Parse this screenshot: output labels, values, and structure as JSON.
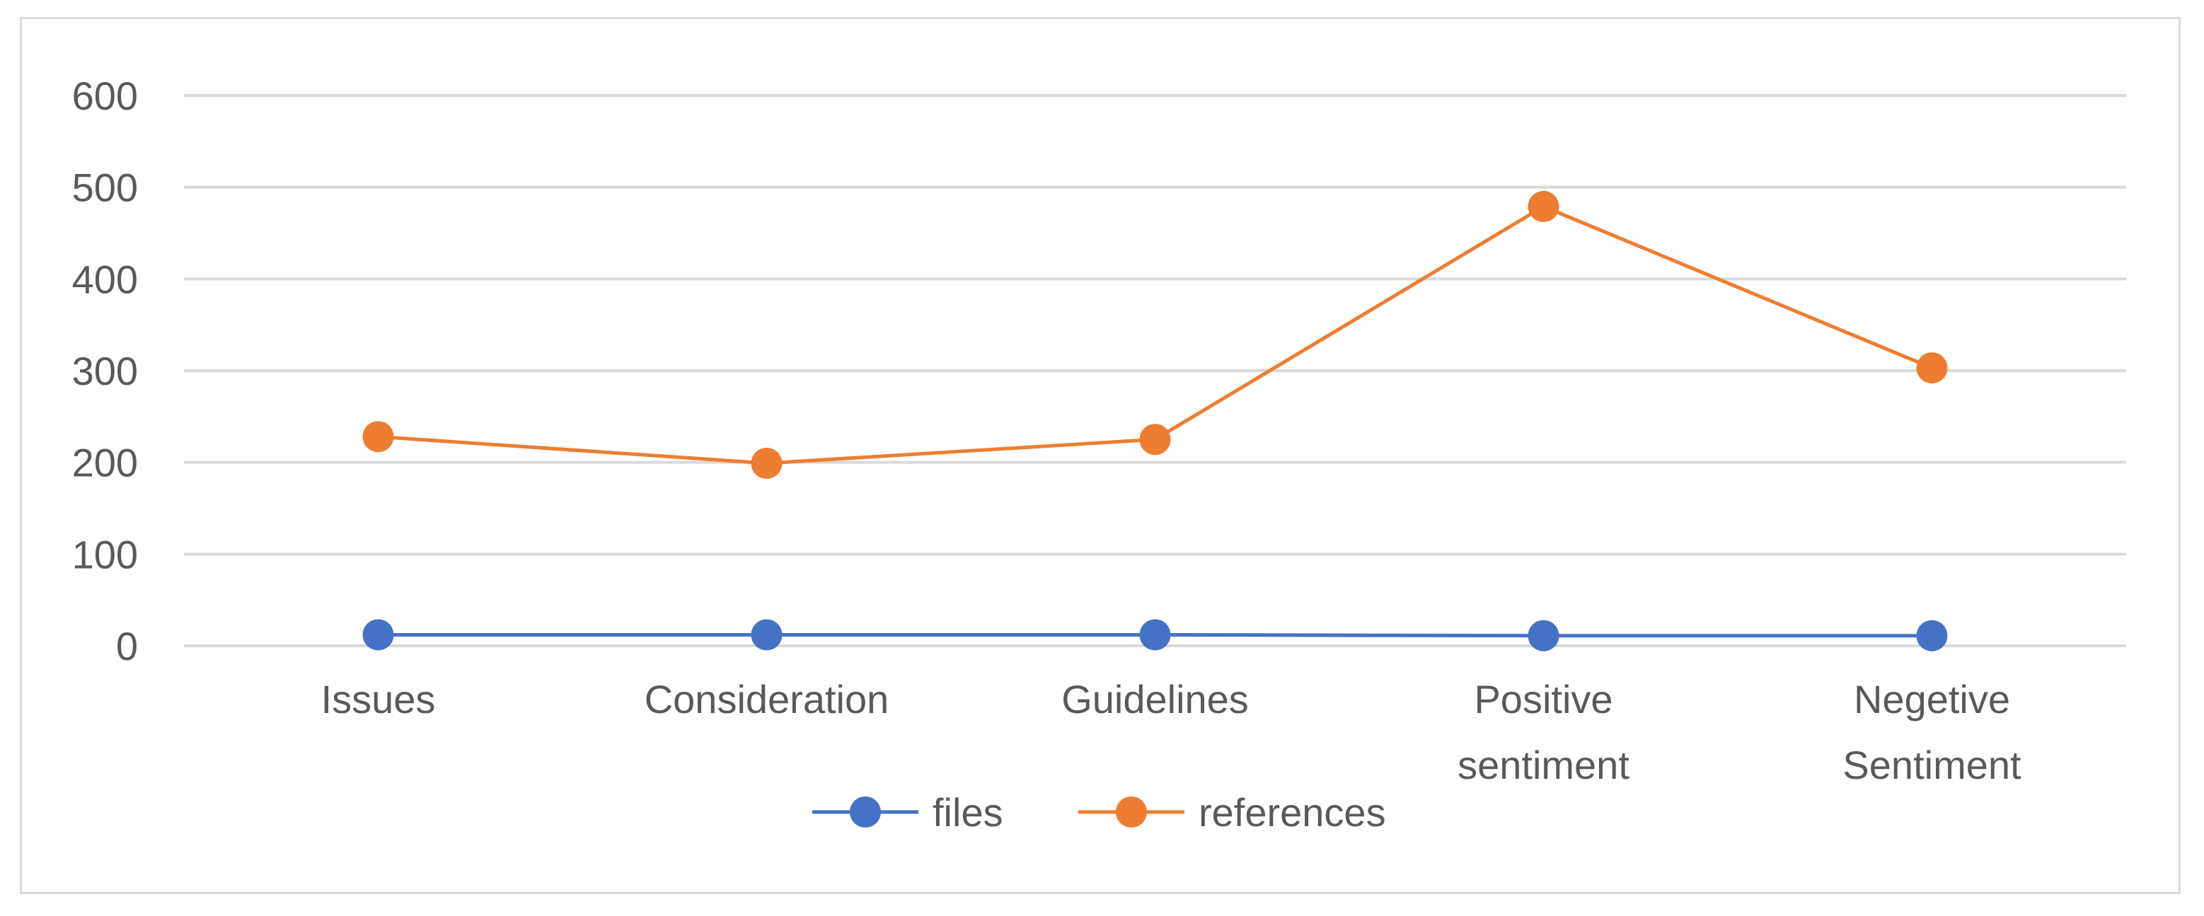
{
  "chart_data": {
    "type": "line",
    "categories": [
      [
        "Issues"
      ],
      [
        "Consideration"
      ],
      [
        "Guidelines"
      ],
      [
        "Positive",
        "sentiment"
      ],
      [
        "Negetive",
        "Sentiment"
      ]
    ],
    "ylim": [
      0,
      600
    ],
    "yticks": [
      0,
      100,
      200,
      300,
      400,
      500,
      600
    ],
    "grid": true,
    "legend_position": "bottom",
    "series": [
      {
        "name": "files",
        "color": "#4472c4",
        "values": [
          12,
          12,
          12,
          11,
          11
        ]
      },
      {
        "name": "references",
        "color": "#ed7d31",
        "values": [
          228,
          199,
          225,
          479,
          303
        ]
      }
    ]
  }
}
